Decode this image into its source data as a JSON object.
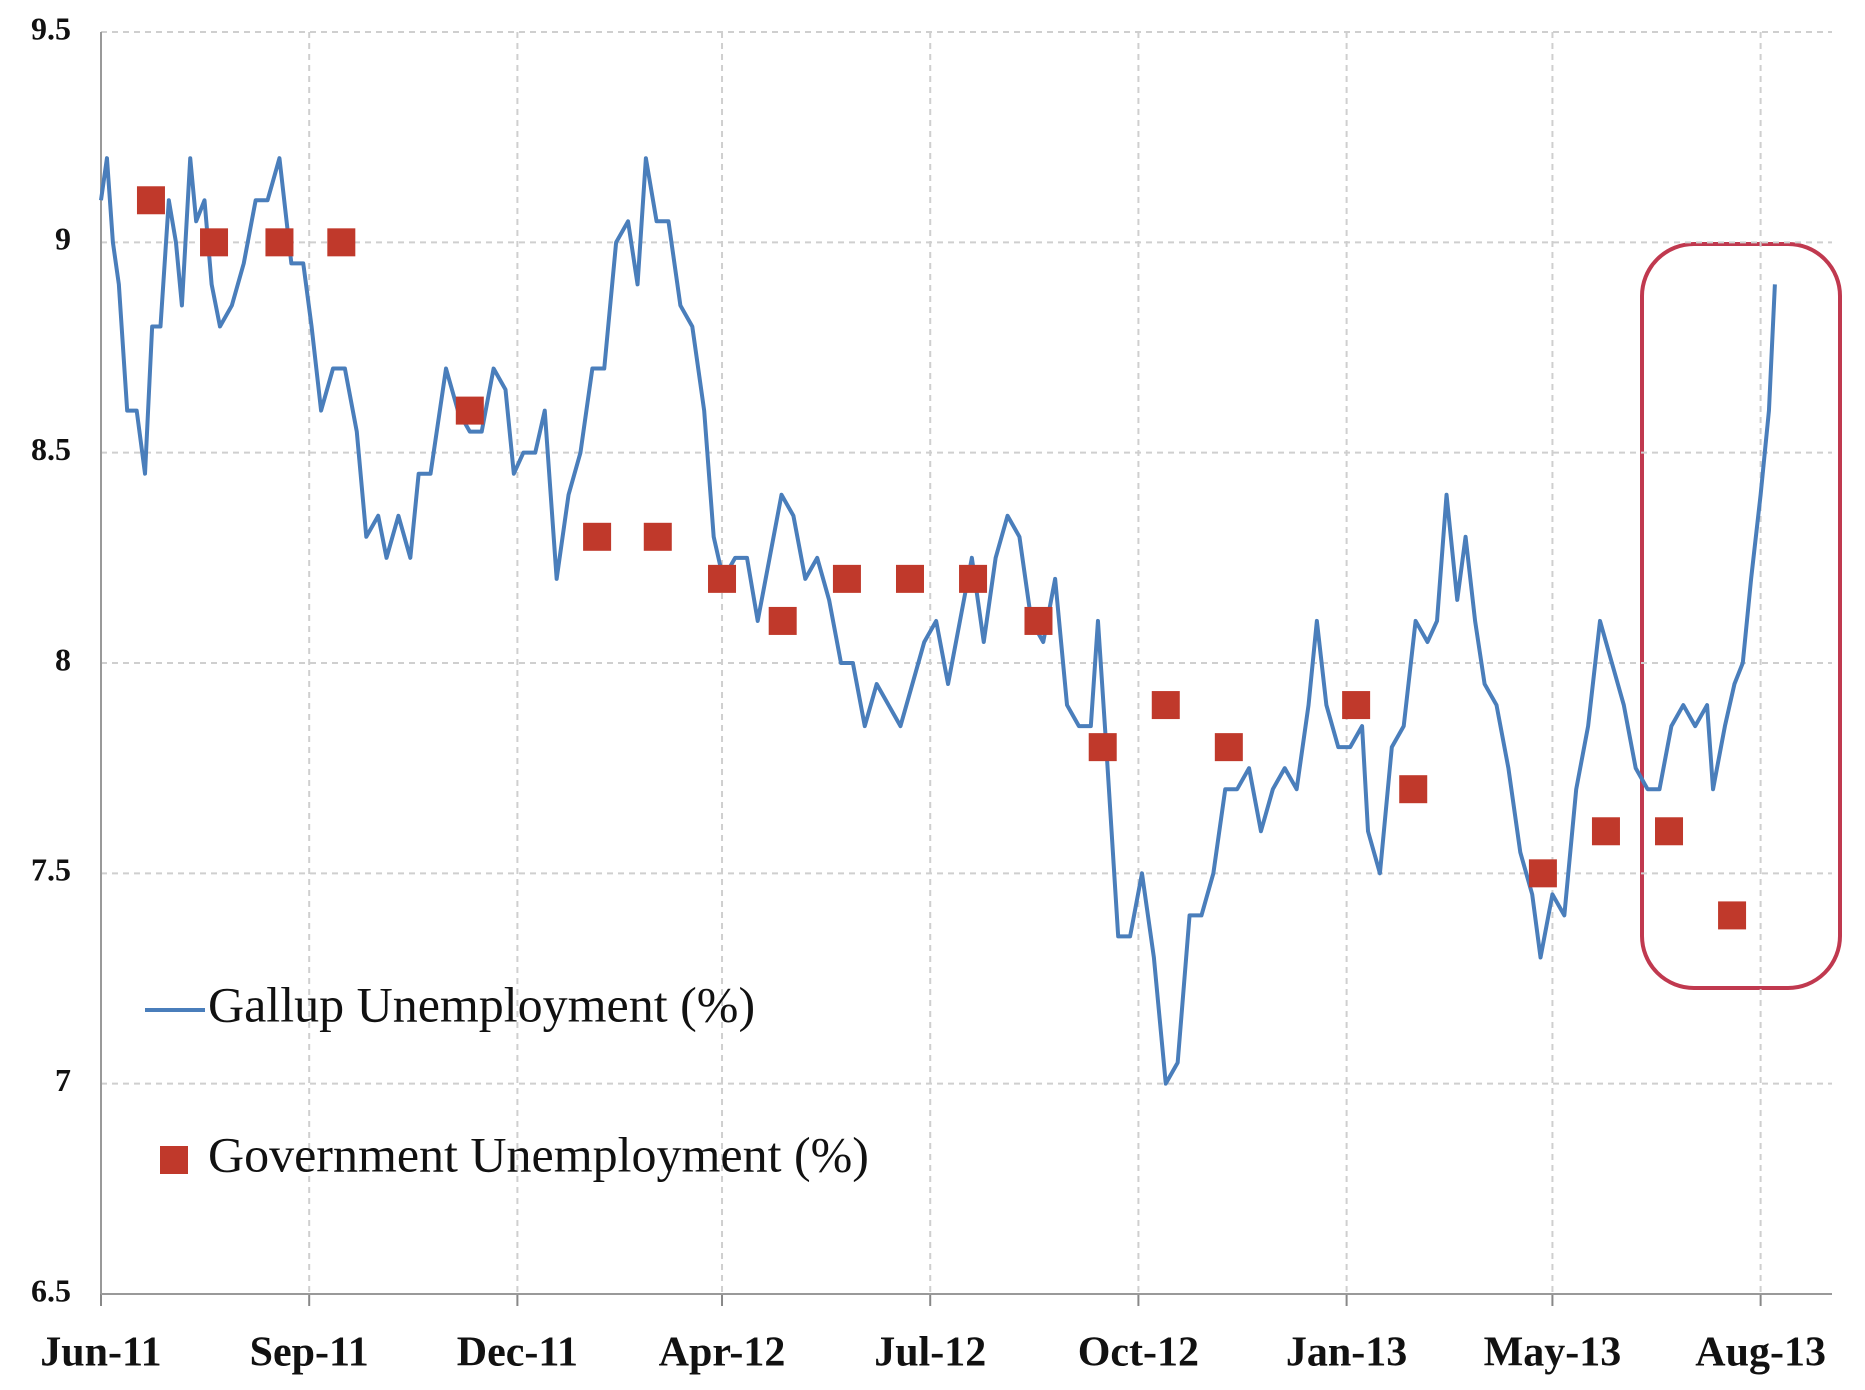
{
  "chart_data": {
    "type": "line",
    "series": [
      {
        "name": "Gallup Unemployment (%)",
        "color": "#4a7ebb",
        "style": "line",
        "x": [
          0,
          5,
          10,
          15,
          22,
          30,
          37,
          43,
          50,
          57,
          63,
          68,
          75,
          80,
          87,
          93,
          100,
          110,
          120,
          130,
          140,
          150,
          160,
          170,
          177,
          185,
          195,
          205,
          215,
          223,
          233,
          240,
          250,
          260,
          267,
          277,
          290,
          300,
          310,
          320,
          330,
          340,
          347,
          355,
          365,
          373,
          383,
          393,
          403,
          413,
          423,
          433,
          443,
          451,
          458,
          467,
          477,
          487,
          497,
          507,
          515,
          523,
          533,
          543,
          552,
          562,
          572,
          582,
          592,
          602,
          612,
          622,
          632,
          642,
          652,
          662,
          672,
          682,
          692,
          702,
          712,
          722,
          732,
          742,
          752,
          762,
          772,
          782,
          792,
          802,
          812,
          822,
          832,
          838,
          845,
          855,
          865,
          875,
          885,
          895,
          905,
          915,
          925,
          935,
          945,
          955,
          965,
          975,
          985,
          995,
          1005,
          1015,
          1022,
          1030,
          1040,
          1050,
          1060,
          1065,
          1075,
          1085,
          1095,
          1105,
          1115,
          1123,
          1131,
          1140,
          1147,
          1155,
          1163,
          1173,
          1183,
          1193,
          1203,
          1210,
          1220,
          1230,
          1240,
          1250,
          1260,
          1270,
          1280,
          1290,
          1300,
          1310,
          1320,
          1330,
          1340,
          1350,
          1355,
          1365,
          1373,
          1380,
          1387,
          1395,
          1402,
          1407
        ],
        "values": [
          9.1,
          9.2,
          9.0,
          8.9,
          8.6,
          8.6,
          8.45,
          8.8,
          8.8,
          9.1,
          9.0,
          8.85,
          9.2,
          9.05,
          9.1,
          8.9,
          8.8,
          8.85,
          8.95,
          9.1,
          9.1,
          9.2,
          8.95,
          8.95,
          8.8,
          8.6,
          8.7,
          8.7,
          8.55,
          8.3,
          8.35,
          8.25,
          8.35,
          8.25,
          8.45,
          8.45,
          8.7,
          8.6,
          8.55,
          8.55,
          8.7,
          8.65,
          8.45,
          8.5,
          8.5,
          8.6,
          8.2,
          8.4,
          8.5,
          8.7,
          8.7,
          9.0,
          9.05,
          8.9,
          9.2,
          9.05,
          9.05,
          8.85,
          8.8,
          8.6,
          8.3,
          8.2,
          8.25,
          8.25,
          8.1,
          8.25,
          8.4,
          8.35,
          8.2,
          8.25,
          8.15,
          8.0,
          8.0,
          7.85,
          7.95,
          7.9,
          7.85,
          7.95,
          8.05,
          8.1,
          7.95,
          8.1,
          8.25,
          8.05,
          8.25,
          8.35,
          8.3,
          8.1,
          8.05,
          8.2,
          7.9,
          7.85,
          7.85,
          8.1,
          7.8,
          7.35,
          7.35,
          7.5,
          7.3,
          7.0,
          7.05,
          7.4,
          7.4,
          7.5,
          7.7,
          7.7,
          7.75,
          7.6,
          7.7,
          7.75,
          7.7,
          7.9,
          8.1,
          7.9,
          7.8,
          7.8,
          7.85,
          7.6,
          7.5,
          7.8,
          7.85,
          8.1,
          8.05,
          8.1,
          8.4,
          8.15,
          8.3,
          8.1,
          7.95,
          7.9,
          7.75,
          7.55,
          7.45,
          7.3,
          7.45,
          7.4,
          7.7,
          7.85,
          8.1,
          8.0,
          7.9,
          7.75,
          7.7,
          7.7,
          7.85,
          7.9,
          7.85,
          7.9,
          7.7,
          7.85,
          7.95,
          8.0,
          8.2,
          8.4,
          8.6,
          8.9
        ]
      },
      {
        "name": "Government Unemployment (%)",
        "color": "#c0392b",
        "style": "square",
        "x": [
          42,
          95,
          150,
          202,
          310,
          417,
          468,
          522,
          573,
          627,
          680,
          733,
          788,
          842,
          895,
          948,
          1055,
          1103,
          1212,
          1265,
          1318,
          1371
        ],
        "values": [
          9.1,
          9.0,
          9.0,
          9.0,
          8.6,
          8.3,
          8.3,
          8.2,
          8.1,
          8.2,
          8.2,
          8.2,
          8.1,
          7.8,
          7.9,
          7.8,
          7.9,
          7.7,
          7.5,
          7.6,
          7.6,
          7.4
        ]
      }
    ],
    "xlim": [
      0,
      1455
    ],
    "xticks": [
      {
        "value": 0,
        "label": "Jun-11"
      },
      {
        "value": 175,
        "label": "Sep-11"
      },
      {
        "value": 350,
        "label": "Dec-11"
      },
      {
        "value": 522,
        "label": "Apr-12"
      },
      {
        "value": 697,
        "label": "Jul-12"
      },
      {
        "value": 872,
        "label": "Oct-12"
      },
      {
        "value": 1047,
        "label": "Jan-13"
      },
      {
        "value": 1220,
        "label": "May-13"
      },
      {
        "value": 1395,
        "label": "Aug-13"
      }
    ],
    "ylim": [
      6.5,
      9.5
    ],
    "yticks": [
      6.5,
      7,
      7.5,
      8,
      8.5,
      9,
      9.5
    ],
    "grid": true
  }
}
